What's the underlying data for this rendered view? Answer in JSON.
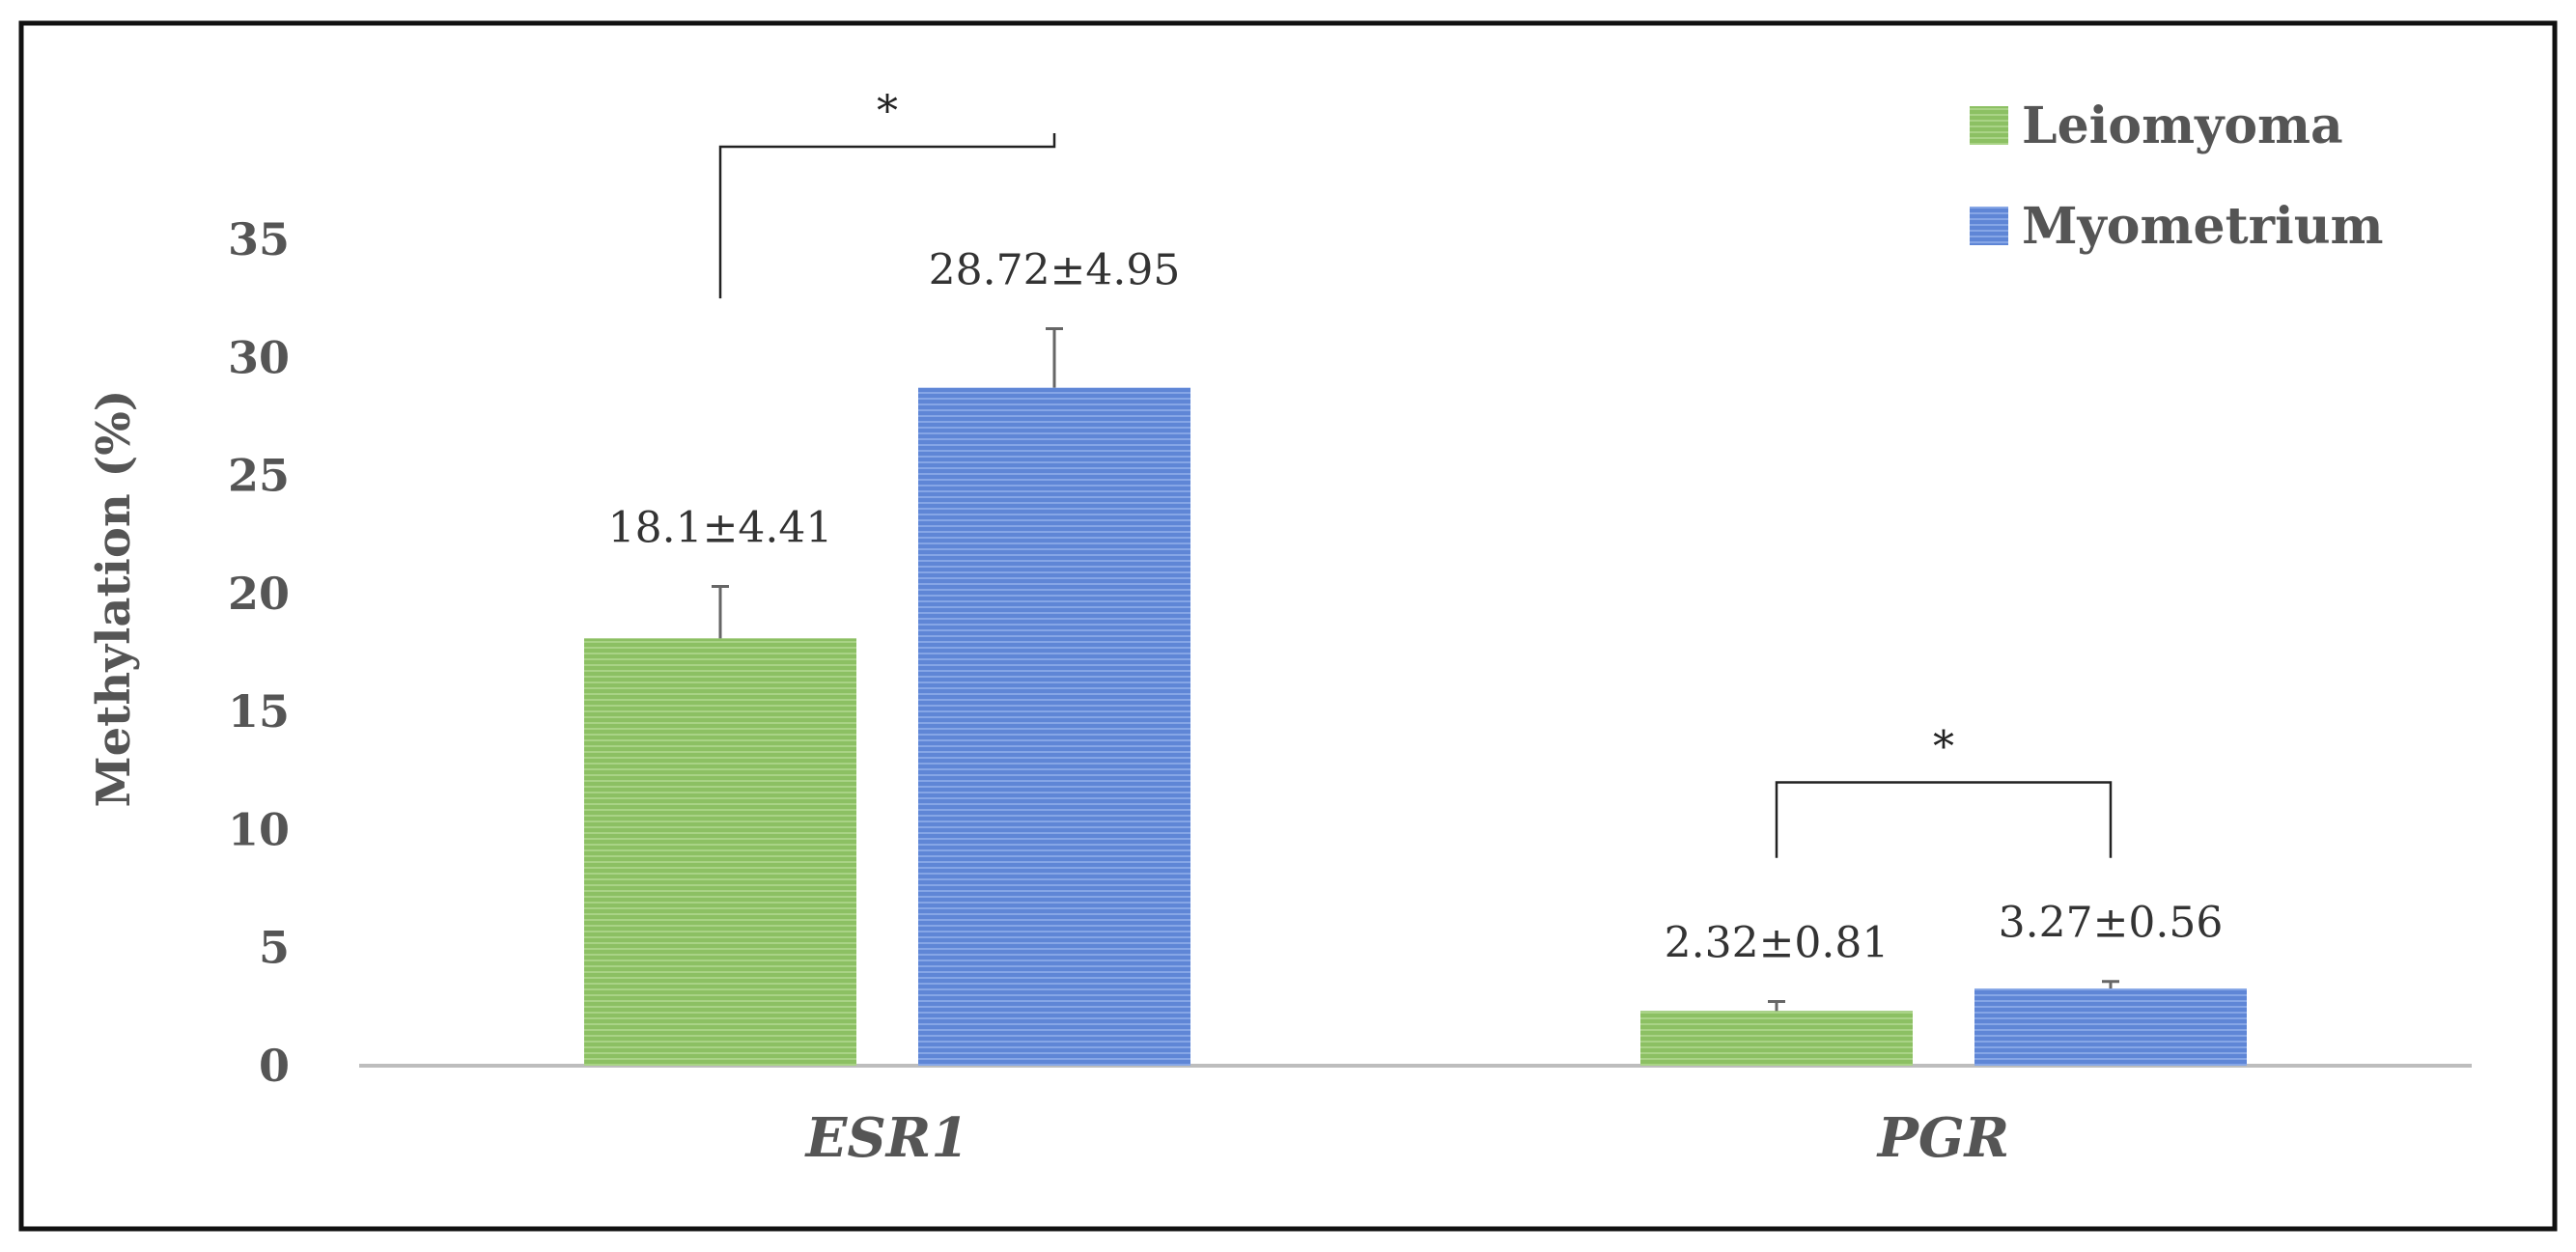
{
  "chart_data": {
    "type": "bar",
    "categories": [
      "ESR1",
      "PGR"
    ],
    "series": [
      {
        "name": "Leiomyoma",
        "values": [
          18.1,
          2.32
        ],
        "errors": [
          2.2,
          0.4
        ],
        "labels": [
          "18.1±4.41",
          "2.32±0.81"
        ],
        "color": "#8cc063"
      },
      {
        "name": "Myometrium",
        "values": [
          28.72,
          3.27
        ],
        "errors": [
          2.5,
          0.3
        ],
        "labels": [
          "28.72±4.95",
          "3.27±0.56"
        ],
        "color": "#5f86d6"
      }
    ],
    "ylabel": "Methylation  (%)",
    "xlabel": "",
    "ylim": [
      0,
      35
    ],
    "yticks": [
      0,
      5,
      10,
      15,
      20,
      25,
      30,
      35
    ],
    "grid": false,
    "legend_position": "top-right",
    "significance": [
      {
        "category": "ESR1",
        "label": "*"
      },
      {
        "category": "PGR",
        "label": "*"
      }
    ]
  }
}
